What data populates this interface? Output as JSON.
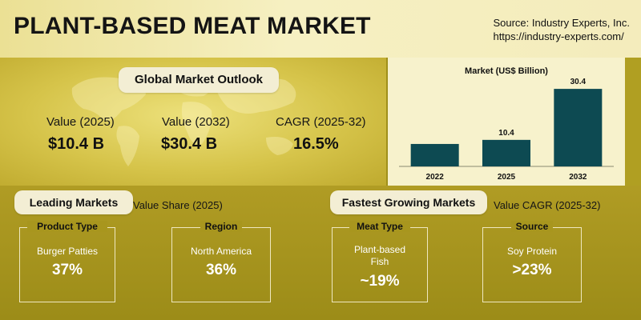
{
  "header": {
    "title": "PLANT-BASED MEAT MARKET",
    "source_line1": "Source: Industry Experts, Inc.",
    "source_line2": "https://industry-experts.com/"
  },
  "outlook": {
    "label": "Global Market Outlook",
    "kpis": [
      {
        "label": "Value (2025)",
        "value": "$10.4 B"
      },
      {
        "label": "Value (2032)",
        "value": "$30.4 B"
      },
      {
        "label": "CAGR (2025-32)",
        "value": "16.5%"
      }
    ]
  },
  "chart_data": {
    "type": "bar",
    "title": "Market (US$ Billion)",
    "categories": [
      "2022",
      "2025",
      "2032"
    ],
    "values": [
      null,
      10.4,
      30.4
    ],
    "value_labels": [
      "",
      "10.4",
      "30.4"
    ],
    "bar_color": "#0d4a52",
    "ylim": [
      0,
      32
    ]
  },
  "leading": {
    "label": "Leading Markets",
    "sublabel": "Value Share (2025)",
    "cards": [
      {
        "head": "Product Type",
        "item": "Burger Patties",
        "value": "37%"
      },
      {
        "head": "Region",
        "item": "North America",
        "value": "36%"
      }
    ]
  },
  "fastest": {
    "label": "Fastest Growing Markets",
    "sublabel": "Value CAGR (2025-32)",
    "cards": [
      {
        "head": "Meat Type",
        "item": "Plant-based Fish",
        "value": "~19%"
      },
      {
        "head": "Source",
        "item": "Soy Protein",
        "value": ">23%"
      }
    ]
  },
  "colors": {
    "header_bg": "#f6f0c2",
    "panel_bg": "#d6c44a",
    "lower_bg": "#a0901a",
    "chart_bg": "#f7f2cc",
    "bar": "#0d4a52"
  }
}
